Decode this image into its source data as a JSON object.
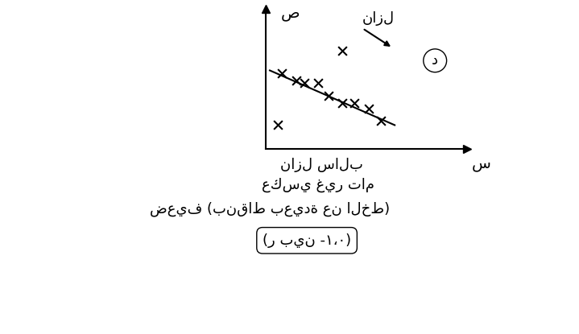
{
  "chart_data": {
    "type": "scatter",
    "x_label": "س",
    "y_label": "ص",
    "label": "د",
    "annotations": [
      "نازل",
      "نازل سالب",
      "عكسي غير تام",
      "ضعيف (بنقاط بعيدة عن الخط)",
      "(ر بين -١،٠)"
    ],
    "x": [
      0.8,
      1.5,
      1.9,
      2.6,
      3.1,
      3.8,
      4.4,
      5.1,
      5.7,
      3.8,
      0.6
    ],
    "y": [
      5.4,
      4.9,
      4.7,
      4.7,
      3.8,
      3.3,
      3.3,
      2.9,
      2.0,
      7.0,
      1.7
    ],
    "trend_line": {
      "x": [
        0.2,
        6.4
      ],
      "y": [
        5.6,
        1.7
      ]
    },
    "marker": "x",
    "color": "#000000",
    "xlim": [
      0,
      10
    ],
    "ylim": [
      0,
      10
    ],
    "xticks": [],
    "yticks": [],
    "tick_labels": false,
    "grid": false
  }
}
